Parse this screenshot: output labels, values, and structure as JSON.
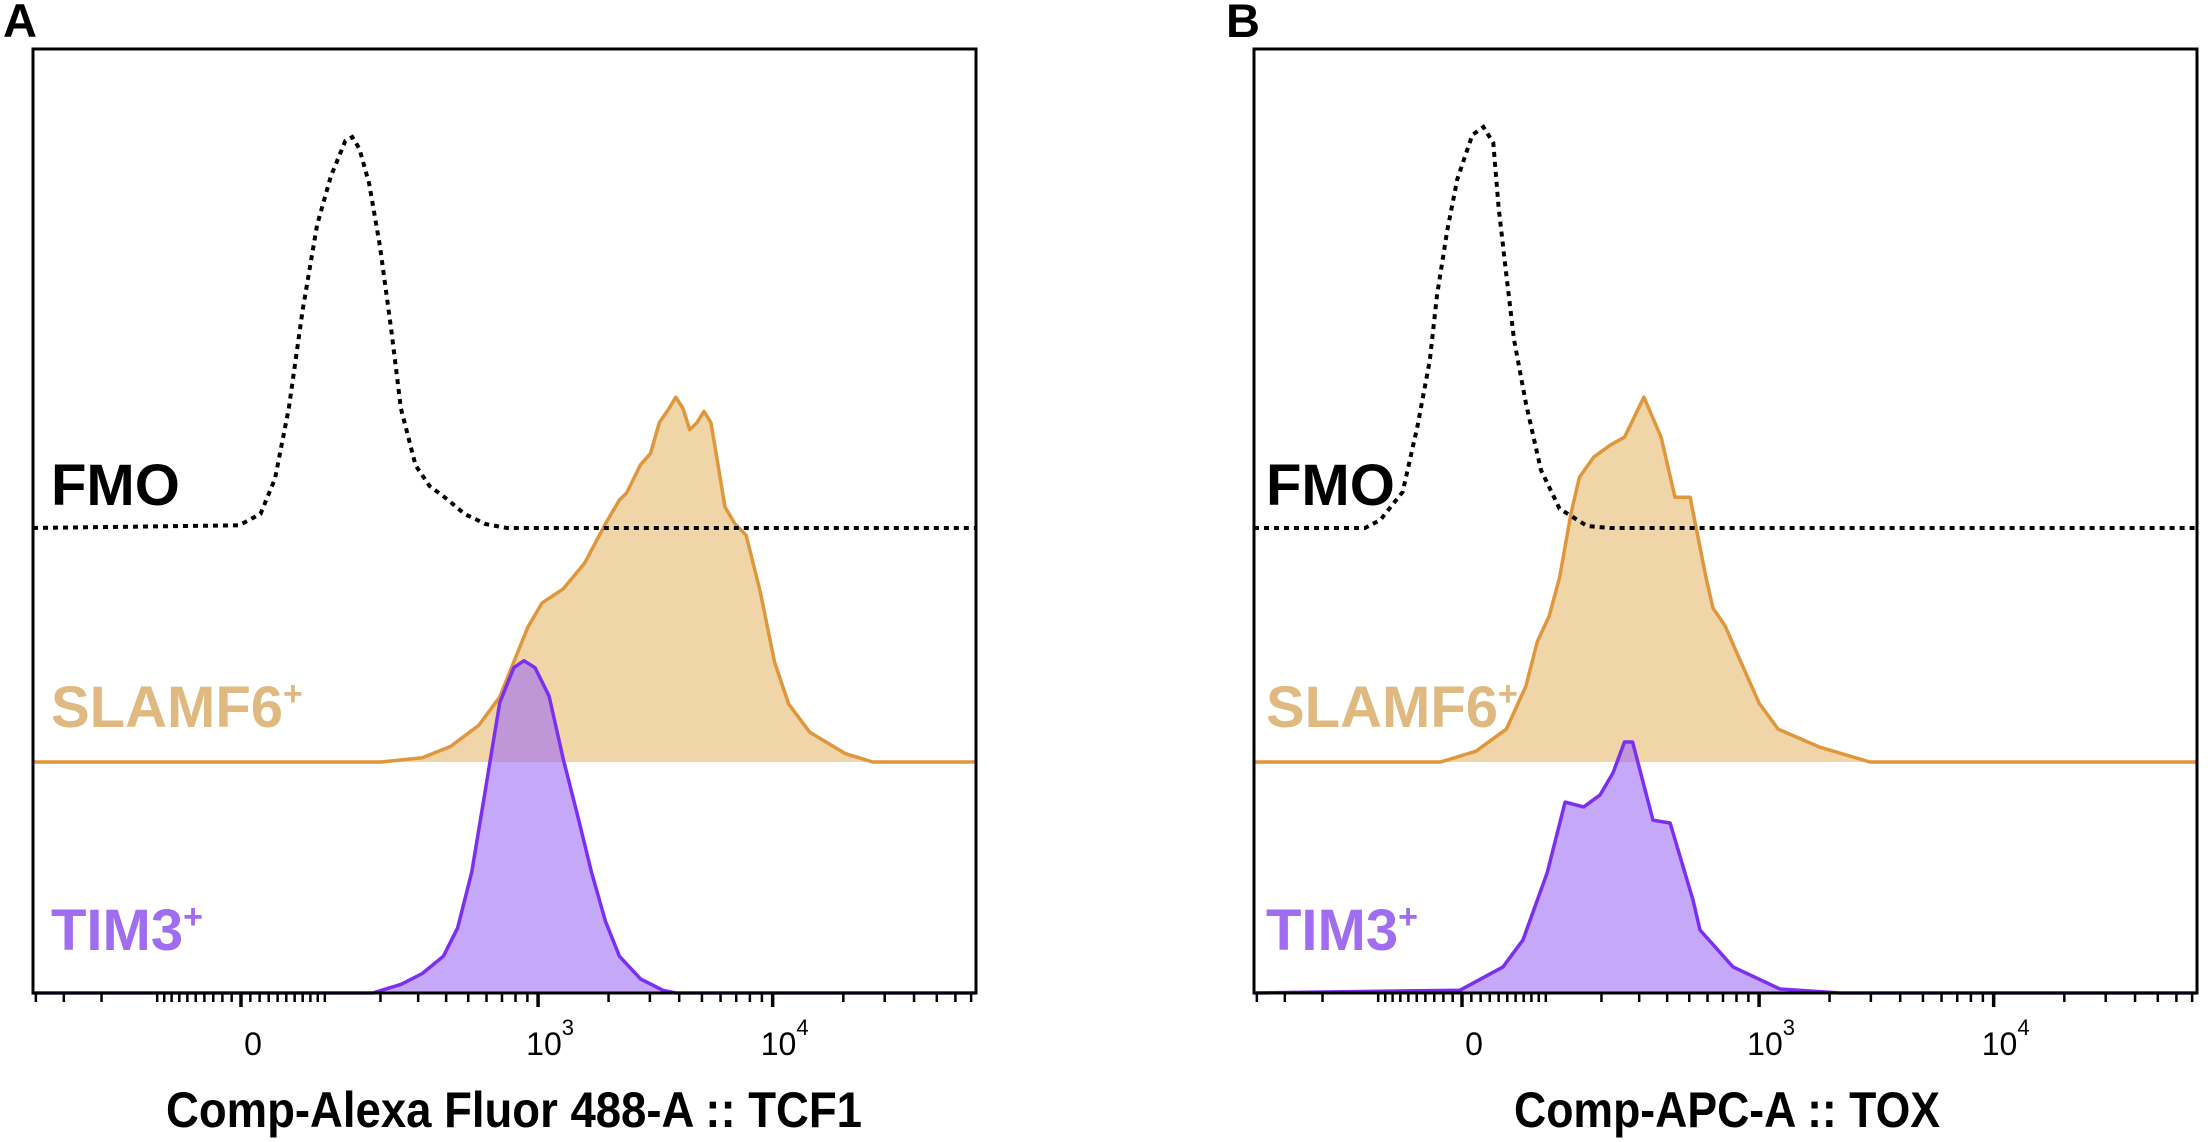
{
  "colors": {
    "fmo_line": "#000000",
    "slamf6_line": "#e0963a",
    "slamf6_fill": "#f0d5a8",
    "slamf6_label": "#dfb97f",
    "tim3_line": "#7b2ff0",
    "tim3_fill": "#a06ef5",
    "tim3_label": "#a06cf0"
  },
  "chart_data": [
    {
      "type": "area",
      "panel_letter": "A",
      "xlabel": "Comp-Alexa Fluor 488-A :: TCF1",
      "ylabel": "",
      "x_scale": "biexponential",
      "xlim": [
        -412,
        73000
      ],
      "y_units": "% of max (staggered offset)",
      "grid": false,
      "ticks": [
        {
          "value": 0,
          "label": "0",
          "sup": ""
        },
        {
          "value": 1000,
          "label": "10",
          "sup": "3"
        },
        {
          "value": 10000,
          "label": "10",
          "sup": "4"
        }
      ],
      "series": [
        {
          "name": "FMO",
          "sup": "",
          "style": "dotted",
          "points": [
            [
              -412,
              0
            ],
            [
              -2,
              0.7
            ],
            [
              21,
              3.6
            ],
            [
              37,
              12.6
            ],
            [
              53,
              30.6
            ],
            [
              70,
              55.8
            ],
            [
              89,
              77.4
            ],
            [
              109,
              90
            ],
            [
              132,
              99
            ],
            [
              144,
              100
            ],
            [
              157,
              97
            ],
            [
              176,
              88
            ],
            [
              199,
              72
            ],
            [
              226,
              50
            ],
            [
              250,
              30.6
            ],
            [
              292,
              16
            ],
            [
              337,
              10.8
            ],
            [
              407,
              7.2
            ],
            [
              481,
              3.6
            ],
            [
              596,
              1
            ],
            [
              735,
              0
            ],
            [
              73000,
              0
            ]
          ]
        },
        {
          "name": "SLAMF6",
          "sup": "+",
          "style": "filled",
          "points": [
            [
              -412,
              0
            ],
            [
              200,
              0
            ],
            [
              313,
              1.1
            ],
            [
              419,
              4
            ],
            [
              556,
              9.4
            ],
            [
              684,
              16.6
            ],
            [
              787,
              25.6
            ],
            [
              906,
              34.6
            ],
            [
              1040,
              40.7
            ],
            [
              1282,
              44.3
            ],
            [
              1577,
              50.8
            ],
            [
              1940,
              60.9
            ],
            [
              2224,
              67
            ],
            [
              2387,
              68.8
            ],
            [
              2736,
              76
            ],
            [
              3019,
              78.9
            ],
            [
              3292,
              86.8
            ],
            [
              3619,
              90.4
            ],
            [
              3870,
              93.3
            ],
            [
              4153,
              90.4
            ],
            [
              4436,
              85
            ],
            [
              4763,
              86.8
            ],
            [
              5101,
              89.7
            ],
            [
              5461,
              86.8
            ],
            [
              5853,
              76
            ],
            [
              6268,
              65.2
            ],
            [
              6911,
              60.9
            ],
            [
              7706,
              58
            ],
            [
              8851,
              43.6
            ],
            [
              10180,
              25.6
            ],
            [
              11700,
              14.8
            ],
            [
              14390,
              7.6
            ],
            [
              20300,
              2.2
            ],
            [
              26700,
              0
            ],
            [
              73000,
              0
            ]
          ]
        },
        {
          "name": "TIM3",
          "sup": "+",
          "style": "filled",
          "points": [
            [
              -412,
              0
            ],
            [
              183,
              0
            ],
            [
              250,
              2.2
            ],
            [
              313,
              5
            ],
            [
              389,
              9.4
            ],
            [
              449,
              16.6
            ],
            [
              518,
              31
            ],
            [
              596,
              52.6
            ],
            [
              684,
              74.2
            ],
            [
              787,
              83.2
            ],
            [
              869,
              85
            ],
            [
              970,
              83.2
            ],
            [
              1114,
              76
            ],
            [
              1282,
              59.8
            ],
            [
              1476,
              45.4
            ],
            [
              1690,
              31
            ],
            [
              1940,
              18.4
            ],
            [
              2224,
              9.4
            ],
            [
              2736,
              3.6
            ],
            [
              3412,
              0.7
            ],
            [
              3870,
              0
            ],
            [
              73000,
              0
            ]
          ]
        }
      ]
    },
    {
      "type": "area",
      "panel_letter": "B",
      "xlabel": "Comp-APC-A :: TOX",
      "ylabel": "",
      "x_scale": "biexponential",
      "xlim": [
        -412,
        73000
      ],
      "y_units": "% of max (staggered offset)",
      "grid": false,
      "ticks": [
        {
          "value": 0,
          "label": "0",
          "sup": ""
        },
        {
          "value": 1000,
          "label": "10",
          "sup": "3"
        },
        {
          "value": 10000,
          "label": "10",
          "sup": "4"
        }
      ],
      "series": [
        {
          "name": "FMO",
          "sup": "",
          "style": "dotted",
          "points": [
            [
              -412,
              0
            ],
            [
              -120,
              0
            ],
            [
              -97,
              2
            ],
            [
              -67,
              9
            ],
            [
              -49,
              25.5
            ],
            [
              -35,
              41.8
            ],
            [
              -27,
              58
            ],
            [
              -16,
              74
            ],
            [
              -5,
              87
            ],
            [
              11,
              98
            ],
            [
              23,
              100
            ],
            [
              34,
              96
            ],
            [
              40,
              80
            ],
            [
              49,
              63
            ],
            [
              58,
              47
            ],
            [
              73,
              31
            ],
            [
              93,
              14.5
            ],
            [
              121,
              4.8
            ],
            [
              170,
              0.5
            ],
            [
              220,
              0
            ],
            [
              73000,
              0
            ]
          ]
        },
        {
          "name": "SLAMF6",
          "sup": "+",
          "style": "filled",
          "points": [
            [
              -412,
              0
            ],
            [
              -23,
              0
            ],
            [
              15,
              2.7
            ],
            [
              49,
              8.2
            ],
            [
              73,
              19
            ],
            [
              88,
              30
            ],
            [
              105,
              36.4
            ],
            [
              121,
              46
            ],
            [
              140,
              62
            ],
            [
              155,
              71
            ],
            [
              183,
              76
            ],
            [
              220,
              79
            ],
            [
              257,
              81
            ],
            [
              315,
              91
            ],
            [
              376,
              81
            ],
            [
              433,
              66
            ],
            [
              504,
              66
            ],
            [
              591,
              46
            ],
            [
              633,
              38.4
            ],
            [
              714,
              34
            ],
            [
              828,
              25.4
            ],
            [
              1000,
              14.7
            ],
            [
              1206,
              8.2
            ],
            [
              1820,
              3.7
            ],
            [
              2976,
              0
            ],
            [
              73000,
              0
            ]
          ]
        },
        {
          "name": "TIM3",
          "sup": "+",
          "style": "filled",
          "points": [
            [
              -412,
              0
            ],
            [
              -2,
              0.7
            ],
            [
              45,
              6.5
            ],
            [
              69,
              13.2
            ],
            [
              102,
              30
            ],
            [
              130,
              47.6
            ],
            [
              163,
              46.4
            ],
            [
              197,
              49.4
            ],
            [
              227,
              54.9
            ],
            [
              257,
              62.6
            ],
            [
              280,
              62.6
            ],
            [
              346,
              43.1
            ],
            [
              412,
              42.4
            ],
            [
              519,
              23.2
            ],
            [
              557,
              15.7
            ],
            [
              773,
              6.5
            ],
            [
              1229,
              1
            ],
            [
              2215,
              0
            ],
            [
              73000,
              0
            ]
          ]
        }
      ]
    }
  ]
}
